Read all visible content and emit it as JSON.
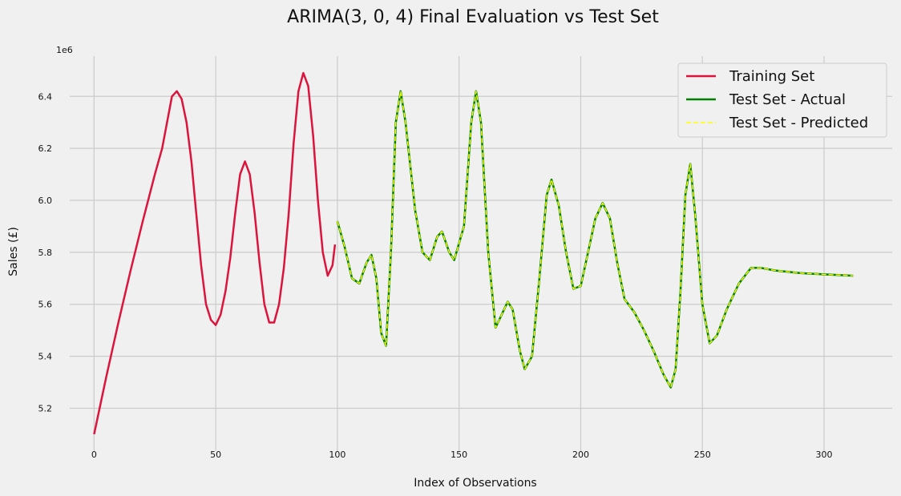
{
  "chart_data": {
    "type": "line",
    "title": "ARIMA(3, 0, 4) Final Evaluation vs Test Set",
    "xlabel": "Index of Observations",
    "ylabel": "Sales (£)",
    "y_offset_label": "1e6",
    "xlim": [
      -10,
      328
    ],
    "ylim": [
      5.035,
      6.555
    ],
    "x_ticks": [
      0,
      50,
      100,
      150,
      200,
      250,
      300
    ],
    "x_tick_labels": [
      "0",
      "50",
      "100",
      "150",
      "200",
      "250",
      "300"
    ],
    "y_ticks": [
      5.2,
      5.4,
      5.6,
      5.8,
      6.0,
      6.2,
      6.4
    ],
    "y_tick_labels": [
      "5.2",
      "5.4",
      "5.6",
      "5.8",
      "6.0",
      "6.2",
      "6.4"
    ],
    "grid": true,
    "legend_position": "top-right",
    "series": [
      {
        "name": "Training Set",
        "color": "#dc143c",
        "style": "solid",
        "points": [
          [
            0,
            5.1
          ],
          [
            5,
            5.32
          ],
          [
            10,
            5.53
          ],
          [
            15,
            5.73
          ],
          [
            20,
            5.92
          ],
          [
            25,
            6.1
          ],
          [
            28,
            6.2
          ],
          [
            30,
            6.3
          ],
          [
            32,
            6.4
          ],
          [
            34,
            6.42
          ],
          [
            36,
            6.39
          ],
          [
            38,
            6.3
          ],
          [
            40,
            6.15
          ],
          [
            42,
            5.95
          ],
          [
            44,
            5.75
          ],
          [
            46,
            5.6
          ],
          [
            48,
            5.54
          ],
          [
            50,
            5.52
          ],
          [
            52,
            5.56
          ],
          [
            54,
            5.65
          ],
          [
            56,
            5.78
          ],
          [
            58,
            5.95
          ],
          [
            60,
            6.1
          ],
          [
            62,
            6.15
          ],
          [
            64,
            6.1
          ],
          [
            66,
            5.95
          ],
          [
            68,
            5.76
          ],
          [
            70,
            5.6
          ],
          [
            72,
            5.53
          ],
          [
            74,
            5.53
          ],
          [
            76,
            5.6
          ],
          [
            78,
            5.74
          ],
          [
            80,
            5.95
          ],
          [
            82,
            6.22
          ],
          [
            84,
            6.42
          ],
          [
            86,
            6.49
          ],
          [
            88,
            6.44
          ],
          [
            90,
            6.25
          ],
          [
            92,
            6.0
          ],
          [
            94,
            5.8
          ],
          [
            96,
            5.71
          ],
          [
            98,
            5.75
          ],
          [
            99,
            5.83
          ]
        ]
      },
      {
        "name": "Test Set - Actual",
        "color": "#008000",
        "style": "solid",
        "points": [
          [
            100,
            5.92
          ],
          [
            103,
            5.82
          ],
          [
            106,
            5.7
          ],
          [
            109,
            5.68
          ],
          [
            112,
            5.76
          ],
          [
            114,
            5.79
          ],
          [
            116,
            5.7
          ],
          [
            118,
            5.49
          ],
          [
            120,
            5.44
          ],
          [
            122,
            5.8
          ],
          [
            124,
            6.3
          ],
          [
            126,
            6.42
          ],
          [
            128,
            6.3
          ],
          [
            132,
            5.96
          ],
          [
            135,
            5.8
          ],
          [
            138,
            5.77
          ],
          [
            141,
            5.86
          ],
          [
            143,
            5.88
          ],
          [
            146,
            5.8
          ],
          [
            148,
            5.77
          ],
          [
            152,
            5.9
          ],
          [
            155,
            6.3
          ],
          [
            157,
            6.42
          ],
          [
            159,
            6.3
          ],
          [
            162,
            5.8
          ],
          [
            165,
            5.51
          ],
          [
            167,
            5.55
          ],
          [
            170,
            5.61
          ],
          [
            172,
            5.58
          ],
          [
            175,
            5.42
          ],
          [
            177,
            5.35
          ],
          [
            180,
            5.4
          ],
          [
            183,
            5.7
          ],
          [
            186,
            6.02
          ],
          [
            188,
            6.08
          ],
          [
            191,
            5.98
          ],
          [
            194,
            5.8
          ],
          [
            197,
            5.66
          ],
          [
            200,
            5.67
          ],
          [
            203,
            5.8
          ],
          [
            206,
            5.93
          ],
          [
            209,
            5.99
          ],
          [
            212,
            5.93
          ],
          [
            215,
            5.76
          ],
          [
            218,
            5.62
          ],
          [
            222,
            5.57
          ],
          [
            226,
            5.5
          ],
          [
            230,
            5.42
          ],
          [
            234,
            5.33
          ],
          [
            237,
            5.28
          ],
          [
            239,
            5.35
          ],
          [
            241,
            5.65
          ],
          [
            243,
            6.02
          ],
          [
            245,
            6.14
          ],
          [
            247,
            5.95
          ],
          [
            250,
            5.6
          ],
          [
            253,
            5.45
          ],
          [
            256,
            5.48
          ],
          [
            260,
            5.58
          ],
          [
            265,
            5.68
          ],
          [
            270,
            5.74
          ],
          [
            274,
            5.74
          ],
          [
            280,
            5.73
          ],
          [
            290,
            5.72
          ],
          [
            300,
            5.715
          ],
          [
            312,
            5.71
          ]
        ]
      },
      {
        "name": "Test Set - Predicted",
        "color": "#ffff00",
        "style": "dashed",
        "points": [
          [
            100,
            5.92
          ],
          [
            103,
            5.82
          ],
          [
            106,
            5.7
          ],
          [
            109,
            5.68
          ],
          [
            112,
            5.76
          ],
          [
            114,
            5.79
          ],
          [
            116,
            5.7
          ],
          [
            118,
            5.49
          ],
          [
            120,
            5.44
          ],
          [
            122,
            5.8
          ],
          [
            124,
            6.3
          ],
          [
            126,
            6.42
          ],
          [
            128,
            6.3
          ],
          [
            132,
            5.96
          ],
          [
            135,
            5.8
          ],
          [
            138,
            5.77
          ],
          [
            141,
            5.86
          ],
          [
            143,
            5.88
          ],
          [
            146,
            5.8
          ],
          [
            148,
            5.77
          ],
          [
            152,
            5.9
          ],
          [
            155,
            6.3
          ],
          [
            157,
            6.42
          ],
          [
            159,
            6.3
          ],
          [
            162,
            5.8
          ],
          [
            165,
            5.51
          ],
          [
            167,
            5.55
          ],
          [
            170,
            5.61
          ],
          [
            172,
            5.58
          ],
          [
            175,
            5.42
          ],
          [
            177,
            5.35
          ],
          [
            180,
            5.4
          ],
          [
            183,
            5.7
          ],
          [
            186,
            6.02
          ],
          [
            188,
            6.08
          ],
          [
            191,
            5.98
          ],
          [
            194,
            5.8
          ],
          [
            197,
            5.66
          ],
          [
            200,
            5.67
          ],
          [
            203,
            5.8
          ],
          [
            206,
            5.93
          ],
          [
            209,
            5.99
          ],
          [
            212,
            5.93
          ],
          [
            215,
            5.76
          ],
          [
            218,
            5.62
          ],
          [
            222,
            5.57
          ],
          [
            226,
            5.5
          ],
          [
            230,
            5.42
          ],
          [
            234,
            5.33
          ],
          [
            237,
            5.28
          ],
          [
            239,
            5.35
          ],
          [
            241,
            5.65
          ],
          [
            243,
            6.02
          ],
          [
            245,
            6.14
          ],
          [
            247,
            5.95
          ],
          [
            250,
            5.6
          ],
          [
            253,
            5.45
          ],
          [
            256,
            5.48
          ],
          [
            260,
            5.58
          ],
          [
            265,
            5.68
          ],
          [
            270,
            5.74
          ],
          [
            274,
            5.74
          ],
          [
            280,
            5.73
          ],
          [
            290,
            5.72
          ],
          [
            300,
            5.715
          ],
          [
            312,
            5.71
          ]
        ]
      }
    ]
  }
}
